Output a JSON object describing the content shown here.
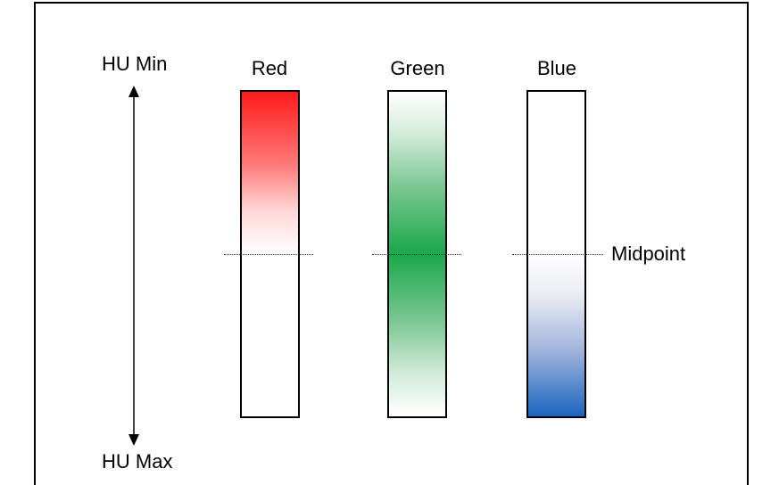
{
  "axis": {
    "top_label": "HU Min",
    "bottom_label": "HU Max"
  },
  "bars": [
    {
      "label": "Red",
      "color": "#ff1a1a",
      "gradient": "top-to-mid"
    },
    {
      "label": "Green",
      "color": "#1aa84a",
      "gradient": "peak-at-mid"
    },
    {
      "label": "Blue",
      "color": "#1a64c0",
      "gradient": "mid-to-bottom"
    }
  ],
  "midpoint_label": "Midpoint"
}
